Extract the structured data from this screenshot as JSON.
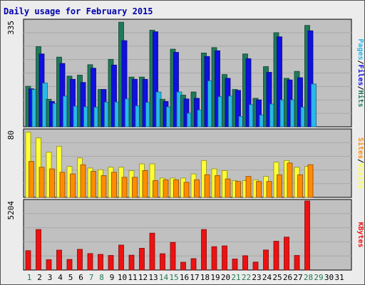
{
  "title": "Daily usage for February 2015",
  "colors": {
    "hits": "#1f7a5a",
    "files": "#1010e0",
    "pages": "#29b8e8",
    "visits": "#ffff33",
    "sites": "#ff8c00",
    "kbytes": "#ee1111",
    "weekend_label": "#207a50",
    "panel_bg": "#c0c0c0"
  },
  "chart_data": [
    {
      "type": "bar",
      "panel": "hits-files-pages",
      "x": [
        1,
        2,
        3,
        4,
        5,
        6,
        7,
        8,
        9,
        10,
        11,
        12,
        13,
        14,
        15,
        16,
        17,
        18,
        19,
        20,
        21,
        22,
        23,
        24,
        25,
        26,
        27,
        28,
        29,
        30,
        31
      ],
      "ymax_label": "335",
      "ymax": 335,
      "side_labels": [
        "Pages",
        "Files",
        "Hits"
      ],
      "series": [
        {
          "name": "Hits",
          "values": [
            128,
            253,
            87,
            220,
            160,
            163,
            196,
            118,
            213,
            330,
            157,
            157,
            305,
            87,
            245,
            100,
            110,
            233,
            250,
            165,
            118,
            230,
            90,
            190,
            297,
            153,
            175,
            320,
            0,
            0,
            0
          ]
        },
        {
          "name": "Files",
          "values": [
            120,
            230,
            80,
            200,
            150,
            140,
            185,
            118,
            195,
            272,
            150,
            150,
            300,
            80,
            235,
            88,
            90,
            222,
            240,
            153,
            115,
            215,
            85,
            172,
            284,
            148,
            155,
            303,
            0,
            0,
            0
          ]
        },
        {
          "name": "Pages",
          "values": [
            118,
            138,
            74,
            97,
            65,
            63,
            62,
            78,
            78,
            88,
            66,
            77,
            110,
            63,
            110,
            43,
            53,
            145,
            95,
            97,
            33,
            70,
            37,
            72,
            85,
            85,
            62,
            135,
            0,
            0,
            0
          ]
        }
      ]
    },
    {
      "type": "bar",
      "panel": "visits-sites",
      "x": [
        1,
        2,
        3,
        4,
        5,
        6,
        7,
        8,
        9,
        10,
        11,
        12,
        13,
        14,
        15,
        16,
        17,
        18,
        19,
        20,
        21,
        22,
        23,
        24,
        25,
        26,
        27,
        28,
        29,
        30,
        31
      ],
      "ymax_label": "80",
      "ymax": 80,
      "side_labels": [
        "Sites",
        "Visits"
      ],
      "series": [
        {
          "name": "Visits",
          "values": [
            78,
            71,
            54,
            61,
            37,
            47,
            35,
            33,
            36,
            36,
            32,
            40,
            40,
            23,
            23,
            23,
            28,
            44,
            34,
            32,
            20,
            20,
            21,
            25,
            42,
            44,
            36,
            37,
            0,
            0,
            0
          ]
        },
        {
          "name": "Sites",
          "values": [
            43,
            36,
            34,
            30,
            28,
            39,
            31,
            26,
            30,
            24,
            24,
            32,
            20,
            21,
            21,
            18,
            21,
            27,
            26,
            22,
            19,
            25,
            19,
            19,
            27,
            41,
            27,
            39,
            0,
            0,
            0
          ]
        }
      ]
    },
    {
      "type": "bar",
      "panel": "kbytes",
      "x": [
        1,
        2,
        3,
        4,
        5,
        6,
        7,
        8,
        9,
        10,
        11,
        12,
        13,
        14,
        15,
        16,
        17,
        18,
        19,
        20,
        21,
        22,
        23,
        24,
        25,
        26,
        27,
        28,
        29,
        30,
        31
      ],
      "ymax_label": "5204",
      "ymax": 5204,
      "side_labels": [
        "KBytes"
      ],
      "series": [
        {
          "name": "KBytes",
          "values": [
            1460,
            3050,
            780,
            1500,
            800,
            1560,
            1240,
            1180,
            1100,
            1880,
            1120,
            1640,
            2780,
            1230,
            2080,
            590,
            860,
            3050,
            1760,
            1820,
            830,
            1080,
            600,
            1510,
            2170,
            2480,
            1100,
            5204,
            0,
            0,
            0
          ]
        }
      ]
    }
  ]
}
